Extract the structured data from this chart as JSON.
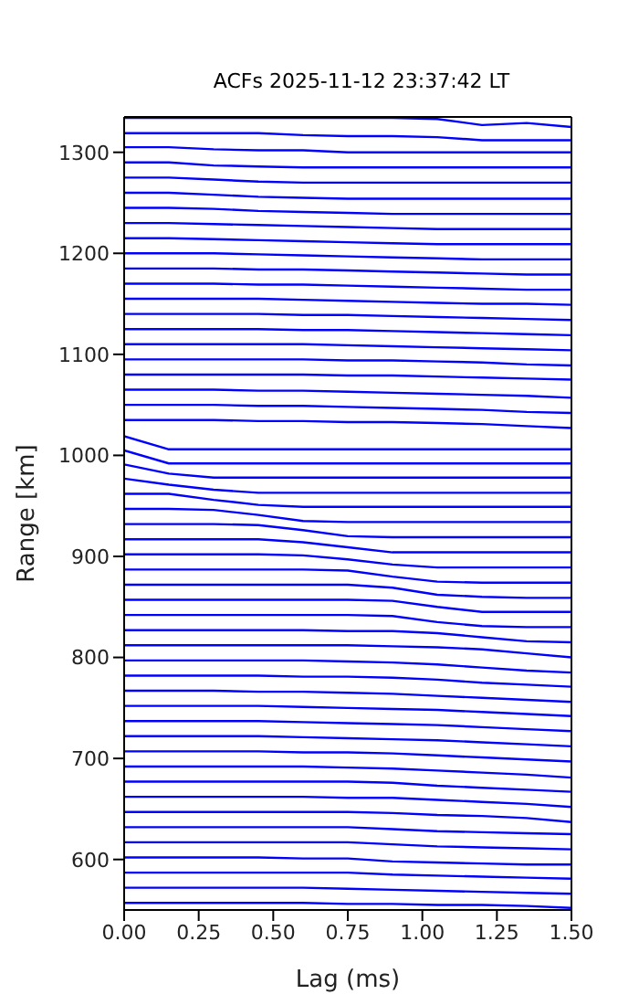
{
  "chart_data": {
    "type": "line",
    "title": "ACFs 2025-11-12 23:37:42 LT",
    "xlabel": "Lag (ms)",
    "ylabel": "Range [km]",
    "x": [
      0,
      0.15,
      0.3,
      0.45,
      0.6,
      0.75,
      0.9,
      1.05,
      1.2,
      1.35,
      1.5
    ],
    "xlim": [
      0,
      1.5
    ],
    "xticks": [
      {
        "value": 0,
        "label": "0.00"
      },
      {
        "value": 0.25,
        "label": "0.25"
      },
      {
        "value": 0.5,
        "label": "0.50"
      },
      {
        "value": 0.75,
        "label": "0.75"
      },
      {
        "value": 1,
        "label": "1.00"
      },
      {
        "value": 1.25,
        "label": "1.25"
      },
      {
        "value": 1.5,
        "label": "1.50"
      }
    ],
    "ylim": [
      550,
      1335
    ],
    "yticks": [
      600,
      700,
      800,
      900,
      1000,
      1100,
      1200,
      1300
    ],
    "grid": false,
    "series": [
      {
        "color": "#0000ff",
        "values": [
          1334,
          1334,
          1334,
          1334,
          1334,
          1334,
          1334,
          1333,
          1327,
          1329,
          1325
        ]
      },
      {
        "color": "#0000ff",
        "values": [
          1319,
          1319,
          1319,
          1319,
          1317,
          1316,
          1316,
          1315,
          1312,
          1312,
          1312
        ]
      },
      {
        "color": "#0000ff",
        "values": [
          1305,
          1305,
          1303,
          1302,
          1302,
          1300,
          1300,
          1300,
          1300,
          1300,
          1300
        ]
      },
      {
        "color": "#0000ff",
        "values": [
          1290,
          1290,
          1287,
          1286,
          1285,
          1285,
          1285,
          1285,
          1285,
          1285,
          1285
        ]
      },
      {
        "color": "#0000ff",
        "values": [
          1275,
          1275,
          1273,
          1271,
          1270,
          1270,
          1270,
          1270,
          1270,
          1270,
          1270
        ]
      },
      {
        "color": "#0000ff",
        "values": [
          1260,
          1260,
          1258,
          1256,
          1255,
          1254,
          1254,
          1254,
          1254,
          1254,
          1254
        ]
      },
      {
        "color": "#0000ff",
        "values": [
          1245,
          1245,
          1244,
          1242,
          1241,
          1240,
          1239,
          1239,
          1239,
          1239,
          1239
        ]
      },
      {
        "color": "#0000ff",
        "values": [
          1230,
          1230,
          1229,
          1228,
          1227,
          1226,
          1225,
          1224,
          1224,
          1224,
          1224
        ]
      },
      {
        "color": "#0000ff",
        "values": [
          1215,
          1215,
          1214,
          1213,
          1212,
          1211,
          1210,
          1209,
          1209,
          1209,
          1209
        ]
      },
      {
        "color": "#0000ff",
        "values": [
          1200,
          1200,
          1200,
          1199,
          1198,
          1197,
          1196,
          1195,
          1194,
          1194,
          1194
        ]
      },
      {
        "color": "#0000ff",
        "values": [
          1185,
          1185,
          1185,
          1184,
          1184,
          1183,
          1182,
          1181,
          1180,
          1179,
          1179
        ]
      },
      {
        "color": "#0000ff",
        "values": [
          1170,
          1170,
          1170,
          1169,
          1169,
          1168,
          1167,
          1166,
          1165,
          1164,
          1164
        ]
      },
      {
        "color": "#0000ff",
        "values": [
          1155,
          1155,
          1155,
          1155,
          1154,
          1153,
          1152,
          1151,
          1150,
          1150,
          1149
        ]
      },
      {
        "color": "#0000ff",
        "values": [
          1140,
          1140,
          1140,
          1140,
          1139,
          1139,
          1138,
          1137,
          1136,
          1135,
          1134
        ]
      },
      {
        "color": "#0000ff",
        "values": [
          1125,
          1125,
          1125,
          1125,
          1124,
          1124,
          1123,
          1122,
          1121,
          1120,
          1119
        ]
      },
      {
        "color": "#0000ff",
        "values": [
          1110,
          1110,
          1110,
          1110,
          1110,
          1109,
          1108,
          1107,
          1106,
          1105,
          1104
        ]
      },
      {
        "color": "#0000ff",
        "values": [
          1095,
          1095,
          1095,
          1095,
          1095,
          1094,
          1094,
          1093,
          1092,
          1090,
          1089
        ]
      },
      {
        "color": "#0000ff",
        "values": [
          1080,
          1080,
          1080,
          1080,
          1080,
          1079,
          1079,
          1078,
          1077,
          1076,
          1075
        ]
      },
      {
        "color": "#0000ff",
        "values": [
          1065,
          1065,
          1065,
          1064,
          1064,
          1063,
          1062,
          1061,
          1060,
          1059,
          1057
        ]
      },
      {
        "color": "#0000ff",
        "values": [
          1050,
          1050,
          1050,
          1049,
          1049,
          1048,
          1047,
          1046,
          1045,
          1043,
          1042
        ]
      },
      {
        "color": "#0000ff",
        "values": [
          1035,
          1035,
          1035,
          1034,
          1034,
          1033,
          1033,
          1032,
          1031,
          1029,
          1027
        ]
      },
      {
        "color": "#0000ff",
        "values": [
          1019,
          1006,
          1006,
          1006,
          1006,
          1006,
          1006,
          1006,
          1006,
          1006,
          1006
        ]
      },
      {
        "color": "#0000ff",
        "values": [
          1005,
          992,
          992,
          992,
          992,
          992,
          992,
          992,
          992,
          992,
          992
        ]
      },
      {
        "color": "#0000ff",
        "values": [
          991,
          982,
          978,
          978,
          978,
          978,
          978,
          978,
          978,
          978,
          978
        ]
      },
      {
        "color": "#0000ff",
        "values": [
          977,
          971,
          966,
          963,
          963,
          963,
          963,
          963,
          963,
          963,
          963
        ]
      },
      {
        "color": "#0000ff",
        "values": [
          962,
          962,
          956,
          951,
          949,
          949,
          949,
          949,
          949,
          949,
          949
        ]
      },
      {
        "color": "#0000ff",
        "values": [
          947,
          947,
          946,
          941,
          935,
          934,
          934,
          934,
          934,
          934,
          934
        ]
      },
      {
        "color": "#0000ff",
        "values": [
          932,
          932,
          932,
          931,
          926,
          920,
          919,
          919,
          919,
          919,
          919
        ]
      },
      {
        "color": "#0000ff",
        "values": [
          917,
          917,
          917,
          917,
          914,
          909,
          904,
          904,
          904,
          904,
          904
        ]
      },
      {
        "color": "#0000ff",
        "values": [
          902,
          902,
          902,
          902,
          901,
          897,
          892,
          889,
          889,
          889,
          889
        ]
      },
      {
        "color": "#0000ff",
        "values": [
          887,
          887,
          887,
          887,
          887,
          886,
          880,
          875,
          874,
          874,
          874
        ]
      },
      {
        "color": "#0000ff",
        "values": [
          872,
          872,
          872,
          872,
          872,
          872,
          869,
          862,
          860,
          859,
          859
        ]
      },
      {
        "color": "#0000ff",
        "values": [
          857,
          857,
          857,
          857,
          857,
          857,
          856,
          850,
          845,
          845,
          845
        ]
      },
      {
        "color": "#0000ff",
        "values": [
          842,
          842,
          842,
          842,
          842,
          842,
          841,
          835,
          831,
          830,
          830
        ]
      },
      {
        "color": "#0000ff",
        "values": [
          827,
          827,
          827,
          827,
          827,
          826,
          826,
          824,
          820,
          816,
          815
        ]
      },
      {
        "color": "#0000ff",
        "values": [
          812,
          812,
          812,
          812,
          812,
          812,
          811,
          810,
          808,
          804,
          800
        ]
      },
      {
        "color": "#0000ff",
        "values": [
          797,
          797,
          797,
          797,
          797,
          796,
          795,
          793,
          790,
          787,
          785
        ]
      },
      {
        "color": "#0000ff",
        "values": [
          782,
          782,
          782,
          782,
          781,
          781,
          780,
          778,
          775,
          773,
          771
        ]
      },
      {
        "color": "#0000ff",
        "values": [
          767,
          767,
          767,
          766,
          766,
          765,
          764,
          762,
          760,
          758,
          756
        ]
      },
      {
        "color": "#0000ff",
        "values": [
          752,
          752,
          752,
          752,
          751,
          750,
          749,
          748,
          746,
          744,
          742
        ]
      },
      {
        "color": "#0000ff",
        "values": [
          737,
          737,
          737,
          737,
          736,
          735,
          734,
          733,
          731,
          729,
          727
        ]
      },
      {
        "color": "#0000ff",
        "values": [
          722,
          722,
          722,
          722,
          721,
          720,
          719,
          718,
          716,
          714,
          712
        ]
      },
      {
        "color": "#0000ff",
        "values": [
          707,
          707,
          707,
          707,
          706,
          706,
          705,
          703,
          701,
          699,
          697
        ]
      },
      {
        "color": "#0000ff",
        "values": [
          692,
          692,
          692,
          692,
          692,
          691,
          690,
          688,
          686,
          684,
          681
        ]
      },
      {
        "color": "#0000ff",
        "values": [
          677,
          677,
          677,
          677,
          677,
          677,
          676,
          673,
          671,
          669,
          667
        ]
      },
      {
        "color": "#0000ff",
        "values": [
          662,
          662,
          662,
          662,
          662,
          661,
          661,
          659,
          657,
          655,
          652
        ]
      },
      {
        "color": "#0000ff",
        "values": [
          647,
          647,
          647,
          647,
          647,
          647,
          646,
          644,
          643,
          641,
          637
        ]
      },
      {
        "color": "#0000ff",
        "values": [
          632,
          632,
          632,
          632,
          632,
          632,
          630,
          628,
          627,
          626,
          625
        ]
      },
      {
        "color": "#0000ff",
        "values": [
          617,
          617,
          617,
          617,
          617,
          617,
          615,
          613,
          612,
          611,
          610
        ]
      },
      {
        "color": "#0000ff",
        "values": [
          602,
          602,
          602,
          602,
          601,
          601,
          598,
          597,
          596,
          595,
          595
        ]
      },
      {
        "color": "#0000ff",
        "values": [
          587,
          587,
          587,
          587,
          587,
          587,
          585,
          584,
          583,
          582,
          581
        ]
      },
      {
        "color": "#0000ff",
        "values": [
          572,
          572,
          572,
          572,
          572,
          571,
          570,
          569,
          568,
          567,
          566
        ]
      },
      {
        "color": "#0000ff",
        "values": [
          557,
          557,
          557,
          557,
          557,
          556,
          556,
          555,
          555,
          554,
          552
        ]
      }
    ]
  }
}
